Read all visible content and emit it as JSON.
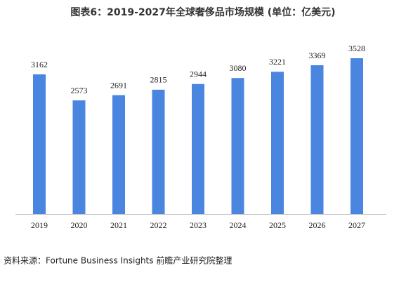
{
  "chart_data": {
    "type": "bar",
    "title": "图表6：2019-2027年全球奢侈品市场规模 (单位：亿美元)",
    "categories": [
      "2019",
      "2020",
      "2021",
      "2022",
      "2023",
      "2024",
      "2025",
      "2026",
      "2027"
    ],
    "values": [
      3162,
      2573,
      2691,
      2815,
      2944,
      3080,
      3221,
      3369,
      3528
    ],
    "color": "#4a86e0",
    "source": "资料来源：Fortune Business Insights 前瞻产业研究院整理"
  }
}
